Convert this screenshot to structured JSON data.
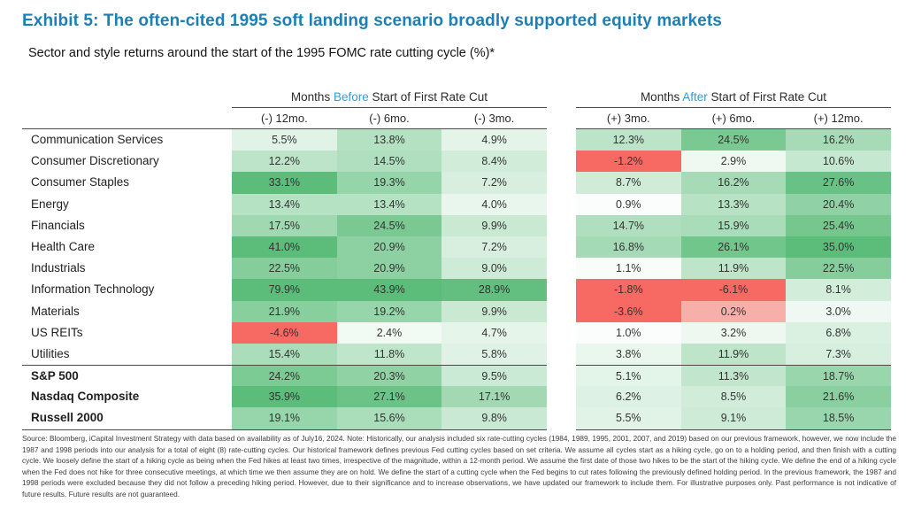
{
  "title": "Exhibit 5: The often-cited 1995 soft landing scenario broadly supported equity markets",
  "subtitle": "Sector and style returns around the start of the 1995 FOMC rate cutting cycle (%)*",
  "headers": {
    "before": {
      "prefix": "Months",
      "accent": "Before",
      "suffix": "Start of First Rate Cut"
    },
    "after": {
      "prefix": "Months",
      "accent": "After",
      "suffix": "Start of First Rate Cut"
    }
  },
  "colors": {
    "title_blue": "#1C80B4",
    "accent_blue": "#2E9ED9",
    "heat_green_max": "#5CBD7A",
    "heat_negative_red": "#F66A63",
    "heat_near_zero_pink": "#F8AFAA"
  },
  "footnote": "Source: Bloomberg, iCapital Investment Strategy with data based on availability as of July16, 2024. Note: Historically, our analysis included six rate-cutting cycles (1984, 1989, 1995, 2001, 2007, and 2019) based on our previous framework, however, we now include the 1987 and 1998 periods into our analysis for a total of eight (8) rate-cutting cycles. Our historical framework defines previous Fed cutting cycles based on set criteria. We assume all cycles start as a hiking cycle, go on to a holding period, and then finish with a cutting cycle. We loosely define the start of a hiking cycle as being when the Fed hikes at least two times, irrespective of the magnitude, within a 12-month period. We assume the first date of those two hikes to be the start of the hiking cycle. We define the end of a hiking cycle when the Fed does not hike for three consecutive meetings, at which time we then assume they are on hold. We define the start of a cutting cycle when the Fed begins to cut rates following the previously defined holding period. In the previous framework, the 1987 and 1998 periods were excluded because they did not follow a preceding hiking period. However, due to their significance and to increase observations, we have updated our framework to include them. For illustrative purposes only. Past performance is not indicative of future results. Future results are not guaranteed.",
  "chart_data": {
    "type": "heatmap",
    "columns": [
      "(-) 12mo.",
      "(-) 6mo.",
      "(-) 3mo.",
      "(+) 3mo.",
      "(+) 6mo.",
      "(+) 12mo."
    ],
    "column_groups": [
      "Months Before Start of First Rate Cut",
      "Months After Start of First Rate Cut"
    ],
    "value_unit": "%",
    "rows": [
      {
        "label": "Communication Services",
        "values": [
          5.5,
          13.8,
          4.9,
          12.3,
          24.5,
          16.2
        ],
        "bold": false
      },
      {
        "label": "Consumer Discretionary",
        "values": [
          12.2,
          14.5,
          8.4,
          -1.2,
          2.9,
          10.6
        ],
        "bold": false
      },
      {
        "label": "Consumer Staples",
        "values": [
          33.1,
          19.3,
          7.2,
          8.7,
          16.2,
          27.6
        ],
        "bold": false
      },
      {
        "label": "Energy",
        "values": [
          13.4,
          13.4,
          4.0,
          0.9,
          13.3,
          20.4
        ],
        "bold": false
      },
      {
        "label": "Financials",
        "values": [
          17.5,
          24.5,
          9.9,
          14.7,
          15.9,
          25.4
        ],
        "bold": false
      },
      {
        "label": "Health Care",
        "values": [
          41.0,
          20.9,
          7.2,
          16.8,
          26.1,
          35.0
        ],
        "bold": false
      },
      {
        "label": "Industrials",
        "values": [
          22.5,
          20.9,
          9.0,
          1.1,
          11.9,
          22.5
        ],
        "bold": false
      },
      {
        "label": "Information Technology",
        "values": [
          79.9,
          43.9,
          28.9,
          -1.8,
          -6.1,
          8.1
        ],
        "bold": false
      },
      {
        "label": "Materials",
        "values": [
          21.9,
          19.2,
          9.9,
          -3.6,
          0.2,
          3.0
        ],
        "bold": false
      },
      {
        "label": "US REITs",
        "values": [
          -4.6,
          2.4,
          4.7,
          1.0,
          3.2,
          6.8
        ],
        "bold": false
      },
      {
        "label": "Utilities",
        "values": [
          15.4,
          11.8,
          5.8,
          3.8,
          11.9,
          7.3
        ],
        "bold": false
      },
      {
        "label": "S&P 500",
        "values": [
          24.2,
          20.3,
          9.5,
          5.1,
          11.3,
          18.7
        ],
        "bold": true
      },
      {
        "label": "Nasdaq Composite",
        "values": [
          35.9,
          27.1,
          17.1,
          6.2,
          8.5,
          21.6
        ],
        "bold": true
      },
      {
        "label": "Russell 2000",
        "values": [
          19.1,
          15.6,
          9.8,
          5.5,
          9.1,
          18.5
        ],
        "bold": true
      }
    ],
    "color_scale": {
      "description": "white at 0 to saturated green at >=30; negatives solid red; tiny positives (0<v<=0.3) pink",
      "green_max_value": 30
    }
  }
}
